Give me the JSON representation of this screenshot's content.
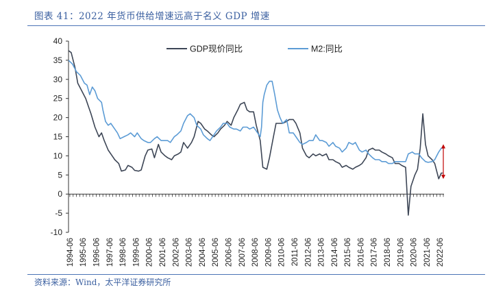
{
  "figure": {
    "title": "图表 41：2022 年货币供给增速远高于名义 GDP 增速",
    "source": "资料来源：Wind，太平洋证券研究所"
  },
  "chart_data": {
    "type": "line",
    "title": "图表 41：2022 年货币供给增速远高于名义 GDP 增速",
    "xlabel": "",
    "ylabel": "",
    "ylim": [
      -10,
      40
    ],
    "yticks": [
      -10,
      -5,
      0,
      5,
      10,
      15,
      20,
      25,
      30,
      35,
      40
    ],
    "xlim": [
      1994.4,
      2022.8
    ],
    "xtick_labels": [
      "1994-06",
      "1995-06",
      "1996-06",
      "1997-06",
      "1998-06",
      "1999-06",
      "2000-06",
      "2001-06",
      "2002-06",
      "2003-06",
      "2004-06",
      "2005-06",
      "2006-06",
      "2007-06",
      "2008-06",
      "2009-06",
      "2010-06",
      "2011-06",
      "2012-06",
      "2013-06",
      "2014-06",
      "2015-06",
      "2016-06",
      "2017-06",
      "2018-06",
      "2019-06",
      "2020-06",
      "2021-06",
      "2022-06"
    ],
    "grid": false,
    "legend": "top",
    "annotation": {
      "type": "double-arrow",
      "x": 2022.75,
      "y_from": 12.5,
      "y_to": 4.5,
      "color": "#c00000"
    },
    "series": [
      {
        "name": "GDP现价同比",
        "color": "#3c4555",
        "points": [
          [
            1994.4,
            37.5
          ],
          [
            1994.6,
            37
          ],
          [
            1994.9,
            33
          ],
          [
            1995.1,
            29
          ],
          [
            1995.4,
            27
          ],
          [
            1995.7,
            25
          ],
          [
            1995.9,
            23
          ],
          [
            1996.1,
            21
          ],
          [
            1996.4,
            17.5
          ],
          [
            1996.7,
            15
          ],
          [
            1996.9,
            16
          ],
          [
            1997.1,
            14
          ],
          [
            1997.4,
            11.5
          ],
          [
            1997.7,
            10
          ],
          [
            1997.9,
            9
          ],
          [
            1998.2,
            8
          ],
          [
            1998.4,
            6
          ],
          [
            1998.7,
            6.3
          ],
          [
            1998.9,
            7.5
          ],
          [
            1999.2,
            7
          ],
          [
            1999.4,
            6.2
          ],
          [
            1999.7,
            6
          ],
          [
            1999.9,
            6.3
          ],
          [
            2000.2,
            10
          ],
          [
            2000.4,
            11.5
          ],
          [
            2000.7,
            11.8
          ],
          [
            2000.9,
            9.5
          ],
          [
            2001.2,
            13
          ],
          [
            2001.4,
            11
          ],
          [
            2001.7,
            10
          ],
          [
            2001.9,
            9.5
          ],
          [
            2002.2,
            9
          ],
          [
            2002.4,
            10
          ],
          [
            2002.7,
            10.5
          ],
          [
            2002.9,
            11
          ],
          [
            2003.1,
            13.5
          ],
          [
            2003.4,
            12
          ],
          [
            2003.7,
            13.5
          ],
          [
            2003.9,
            15
          ],
          [
            2004.2,
            19
          ],
          [
            2004.4,
            18.5
          ],
          [
            2004.7,
            17
          ],
          [
            2004.9,
            16.5
          ],
          [
            2005.2,
            15.5
          ],
          [
            2005.4,
            15
          ],
          [
            2005.7,
            16
          ],
          [
            2005.9,
            17
          ],
          [
            2006.2,
            18
          ],
          [
            2006.4,
            19
          ],
          [
            2006.7,
            18
          ],
          [
            2006.9,
            20
          ],
          [
            2007.2,
            22
          ],
          [
            2007.4,
            23.5
          ],
          [
            2007.7,
            24
          ],
          [
            2007.9,
            22
          ],
          [
            2008.1,
            21.5
          ],
          [
            2008.4,
            21.5
          ],
          [
            2008.6,
            18
          ],
          [
            2008.9,
            14
          ],
          [
            2009.1,
            7
          ],
          [
            2009.4,
            6.5
          ],
          [
            2009.6,
            9.5
          ],
          [
            2009.9,
            15
          ],
          [
            2010.1,
            18.5
          ],
          [
            2010.4,
            18.5
          ],
          [
            2010.6,
            18.5
          ],
          [
            2010.9,
            19
          ],
          [
            2011.1,
            19.5
          ],
          [
            2011.4,
            19.5
          ],
          [
            2011.6,
            18.5
          ],
          [
            2011.9,
            16
          ],
          [
            2012.1,
            12
          ],
          [
            2012.4,
            10
          ],
          [
            2012.6,
            9.5
          ],
          [
            2012.9,
            10.5
          ],
          [
            2013.1,
            10
          ],
          [
            2013.4,
            10.5
          ],
          [
            2013.6,
            10
          ],
          [
            2013.9,
            10.5
          ],
          [
            2014.1,
            9
          ],
          [
            2014.4,
            9
          ],
          [
            2014.6,
            8.5
          ],
          [
            2014.9,
            8
          ],
          [
            2015.1,
            7
          ],
          [
            2015.4,
            7.5
          ],
          [
            2015.6,
            7
          ],
          [
            2015.9,
            6.5
          ],
          [
            2016.1,
            7
          ],
          [
            2016.4,
            7.5
          ],
          [
            2016.6,
            8
          ],
          [
            2016.9,
            9.5
          ],
          [
            2017.1,
            11.5
          ],
          [
            2017.4,
            12
          ],
          [
            2017.6,
            11.5
          ],
          [
            2017.9,
            11.5
          ],
          [
            2018.1,
            11
          ],
          [
            2018.4,
            10.5
          ],
          [
            2018.6,
            10
          ],
          [
            2018.9,
            9.5
          ],
          [
            2019.1,
            8
          ],
          [
            2019.4,
            8
          ],
          [
            2019.6,
            7.5
          ],
          [
            2019.9,
            7
          ],
          [
            2020.1,
            -5.5
          ],
          [
            2020.3,
            2
          ],
          [
            2020.6,
            5
          ],
          [
            2020.8,
            6.5
          ],
          [
            2021.0,
            12
          ],
          [
            2021.2,
            21
          ],
          [
            2021.4,
            13
          ],
          [
            2021.6,
            10
          ],
          [
            2021.9,
            9
          ],
          [
            2022.1,
            8
          ],
          [
            2022.4,
            4
          ],
          [
            2022.6,
            5.5
          ],
          [
            2022.7,
            5.5
          ]
        ]
      },
      {
        "name": "M2:同比",
        "color": "#5b9bd5",
        "points": [
          [
            1994.4,
            35
          ],
          [
            1994.7,
            34
          ],
          [
            1995.0,
            32
          ],
          [
            1995.3,
            31
          ],
          [
            1995.6,
            29
          ],
          [
            1995.8,
            28.5
          ],
          [
            1996.0,
            26
          ],
          [
            1996.2,
            28
          ],
          [
            1996.4,
            27
          ],
          [
            1996.6,
            25
          ],
          [
            1996.9,
            24
          ],
          [
            1997.0,
            22
          ],
          [
            1997.2,
            19
          ],
          [
            1997.4,
            18
          ],
          [
            1997.6,
            18.5
          ],
          [
            1997.9,
            17
          ],
          [
            1998.1,
            16
          ],
          [
            1998.3,
            14.5
          ],
          [
            1998.6,
            15
          ],
          [
            1998.9,
            15.5
          ],
          [
            1999.1,
            16
          ],
          [
            1999.4,
            15
          ],
          [
            1999.6,
            16
          ],
          [
            1999.9,
            14.5
          ],
          [
            2000.1,
            14
          ],
          [
            2000.4,
            13.5
          ],
          [
            2000.6,
            13.5
          ],
          [
            2000.9,
            14.5
          ],
          [
            2001.1,
            15
          ],
          [
            2001.4,
            14
          ],
          [
            2001.6,
            14
          ],
          [
            2001.9,
            14
          ],
          [
            2002.1,
            13.5
          ],
          [
            2002.4,
            15
          ],
          [
            2002.6,
            15.5
          ],
          [
            2002.9,
            16.5
          ],
          [
            2003.1,
            18.5
          ],
          [
            2003.4,
            20.5
          ],
          [
            2003.6,
            21
          ],
          [
            2003.9,
            20
          ],
          [
            2004.1,
            18
          ],
          [
            2004.4,
            17
          ],
          [
            2004.6,
            15.5
          ],
          [
            2004.9,
            14.5
          ],
          [
            2005.1,
            14
          ],
          [
            2005.4,
            15.5
          ],
          [
            2005.6,
            16.5
          ],
          [
            2005.9,
            17.5
          ],
          [
            2006.1,
            18.5
          ],
          [
            2006.4,
            18.5
          ],
          [
            2006.6,
            17.5
          ],
          [
            2006.9,
            17
          ],
          [
            2007.1,
            17
          ],
          [
            2007.4,
            16.5
          ],
          [
            2007.6,
            17.5
          ],
          [
            2007.9,
            17.5
          ],
          [
            2008.1,
            17
          ],
          [
            2008.4,
            17.5
          ],
          [
            2008.6,
            16.5
          ],
          [
            2008.9,
            15
          ],
          [
            2009.0,
            17.5
          ],
          [
            2009.1,
            24
          ],
          [
            2009.2,
            26
          ],
          [
            2009.4,
            28.5
          ],
          [
            2009.6,
            29.5
          ],
          [
            2009.8,
            29.5
          ],
          [
            2010.0,
            26
          ],
          [
            2010.2,
            22
          ],
          [
            2010.4,
            20
          ],
          [
            2010.6,
            18.5
          ],
          [
            2010.9,
            19.5
          ],
          [
            2011.1,
            16
          ],
          [
            2011.4,
            16
          ],
          [
            2011.6,
            15
          ],
          [
            2011.9,
            13.5
          ],
          [
            2012.1,
            13
          ],
          [
            2012.4,
            13.5
          ],
          [
            2012.6,
            14
          ],
          [
            2012.9,
            14
          ],
          [
            2013.1,
            15.5
          ],
          [
            2013.4,
            14
          ],
          [
            2013.6,
            14
          ],
          [
            2013.9,
            13.5
          ],
          [
            2014.1,
            12.5
          ],
          [
            2014.4,
            13.5
          ],
          [
            2014.6,
            12.5
          ],
          [
            2014.9,
            12
          ],
          [
            2015.1,
            11
          ],
          [
            2015.4,
            12
          ],
          [
            2015.6,
            13.5
          ],
          [
            2015.9,
            13
          ],
          [
            2016.1,
            13.5
          ],
          [
            2016.4,
            11.5
          ],
          [
            2016.6,
            11
          ],
          [
            2016.9,
            11.5
          ],
          [
            2017.1,
            10.5
          ],
          [
            2017.4,
            9.5
          ],
          [
            2017.6,
            9
          ],
          [
            2017.9,
            9
          ],
          [
            2018.1,
            8.5
          ],
          [
            2018.4,
            8.5
          ],
          [
            2018.6,
            8
          ],
          [
            2018.9,
            8
          ],
          [
            2019.1,
            8.5
          ],
          [
            2019.4,
            8.5
          ],
          [
            2019.6,
            8.5
          ],
          [
            2019.9,
            8.5
          ],
          [
            2020.1,
            10.5
          ],
          [
            2020.4,
            11
          ],
          [
            2020.6,
            10.5
          ],
          [
            2020.9,
            10.5
          ],
          [
            2021.1,
            9.5
          ],
          [
            2021.4,
            8.5
          ],
          [
            2021.6,
            8.3
          ],
          [
            2021.9,
            8.5
          ],
          [
            2022.1,
            9
          ],
          [
            2022.4,
            11
          ],
          [
            2022.6,
            12
          ],
          [
            2022.7,
            12
          ]
        ]
      }
    ]
  }
}
